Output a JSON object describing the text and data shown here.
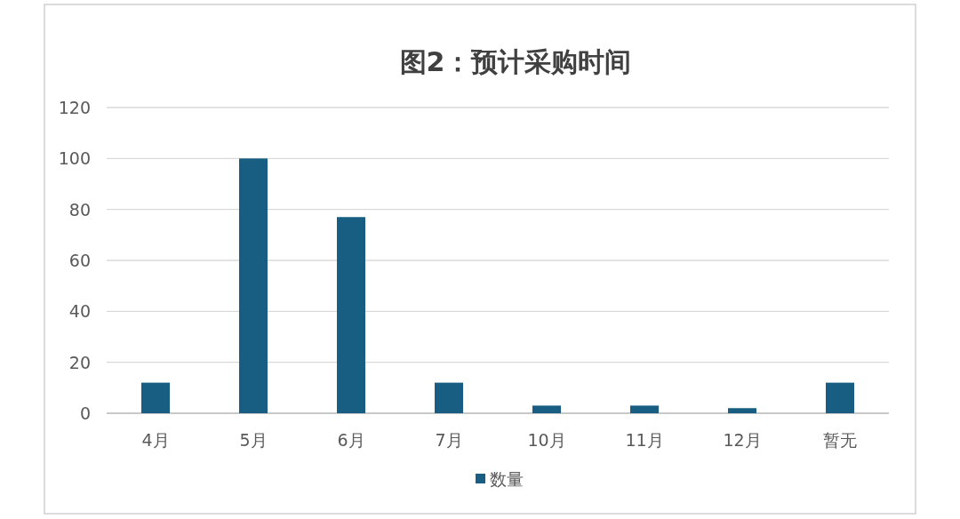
{
  "chart_data": {
    "type": "bar",
    "title": "图2：预计采购时间",
    "categories": [
      "4月",
      "5月",
      "6月",
      "7月",
      "10月",
      "11月",
      "12月",
      "暂无"
    ],
    "series": [
      {
        "name": "数量",
        "color": "#175e82",
        "values": [
          12,
          100,
          77,
          12,
          3,
          3,
          2,
          12
        ]
      }
    ],
    "ylim": [
      0,
      120
    ],
    "yticks": [
      0,
      20,
      40,
      60,
      80,
      100,
      120
    ],
    "grid": "y",
    "legend": "bottom"
  }
}
